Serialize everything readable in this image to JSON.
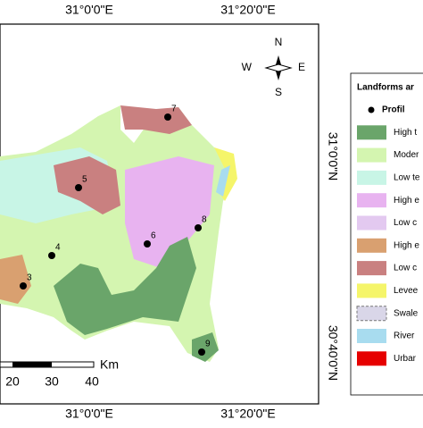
{
  "map": {
    "lon_labels_top": [
      "31°0'0\"E",
      "31°20'0\"E"
    ],
    "lon_labels_bottom": [
      "31°0'0\"E",
      "31°20'0\"E"
    ],
    "lat_labels": [
      "31°0'0\"N",
      "30°40'0\"N"
    ],
    "compass": {
      "n": "N",
      "s": "S",
      "e": "E",
      "w": "W"
    },
    "legend": {
      "title": "Landforms ar",
      "items": [
        {
          "label": "Profil",
          "color": "#000000"
        },
        {
          "label": "High t",
          "color": "#6aa56a"
        },
        {
          "label": "Moder",
          "color": "#d4f5b0"
        },
        {
          "label": "Low te",
          "color": "#c8f5e6"
        },
        {
          "label": "High e",
          "color": "#e8b3f0"
        },
        {
          "label": "Low c",
          "color": "#e3c9f0"
        },
        {
          "label": "High e",
          "color": "#d9a070"
        },
        {
          "label": "Low c",
          "color": "#c98080"
        },
        {
          "label": "Levee",
          "color": "#f5f56a"
        },
        {
          "label": "Swale",
          "color": "#d9d6e8"
        },
        {
          "label": "River",
          "color": "#a8dcef"
        },
        {
          "label": "Urbar",
          "color": "#e60000"
        }
      ]
    },
    "scale": {
      "ticks": [
        "20",
        "30",
        "40"
      ],
      "unit": "Km"
    },
    "profiles": [
      "3",
      "4",
      "5",
      "6",
      "7",
      "8",
      "9"
    ]
  }
}
